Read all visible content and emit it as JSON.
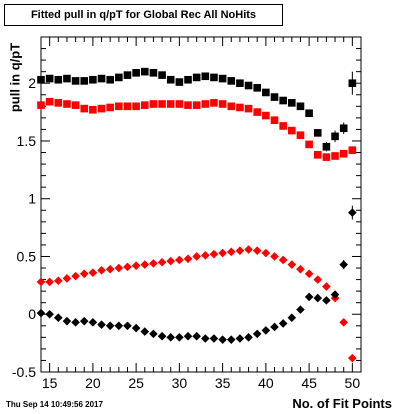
{
  "title": "Fitted pull in q/pT for Global Rec All NoHits",
  "timestamp": "Thu Sep 14 10:49:56 2017",
  "chart_data": {
    "type": "scatter",
    "xlabel": "No. of Fit Points",
    "ylabel": "pull in q/pT",
    "xlim": [
      14,
      51
    ],
    "ylim": [
      -0.5,
      2.4
    ],
    "xticks": [
      15,
      20,
      25,
      30,
      35,
      40,
      45,
      50
    ],
    "yticks": [
      -0.5,
      0,
      0.5,
      1,
      1.5,
      2
    ],
    "grid": false,
    "x": [
      14,
      15,
      16,
      17,
      18,
      19,
      20,
      21,
      22,
      23,
      24,
      25,
      26,
      27,
      28,
      29,
      30,
      31,
      32,
      33,
      34,
      35,
      36,
      37,
      38,
      39,
      40,
      41,
      42,
      43,
      44,
      45,
      46,
      47,
      48,
      49,
      50
    ],
    "series": [
      {
        "marker": "square",
        "color": "#000000",
        "values": [
          2.03,
          2.04,
          2.03,
          2.04,
          2.02,
          2.02,
          2.03,
          2.04,
          2.03,
          2.05,
          2.07,
          2.09,
          2.1,
          2.09,
          2.07,
          2.03,
          2.01,
          2.03,
          2.05,
          2.06,
          2.05,
          2.04,
          2.02,
          2.0,
          1.98,
          1.96,
          1.92,
          1.88,
          1.85,
          1.83,
          1.8,
          1.74,
          1.57,
          1.45,
          1.54,
          1.61,
          2.0
        ],
        "errors": [
          0.02,
          0.02,
          0.02,
          0.02,
          0.02,
          0.02,
          0.02,
          0.02,
          0.02,
          0.02,
          0.02,
          0.02,
          0.02,
          0.02,
          0.02,
          0.02,
          0.02,
          0.02,
          0.02,
          0.02,
          0.02,
          0.02,
          0.02,
          0.02,
          0.02,
          0.02,
          0.02,
          0.02,
          0.02,
          0.02,
          0.02,
          0.03,
          0.03,
          0.04,
          0.05,
          0.05,
          0.1
        ]
      },
      {
        "marker": "square",
        "color": "#ff0000",
        "values": [
          1.81,
          1.84,
          1.83,
          1.82,
          1.81,
          1.78,
          1.77,
          1.78,
          1.79,
          1.8,
          1.8,
          1.8,
          1.81,
          1.82,
          1.82,
          1.82,
          1.82,
          1.81,
          1.81,
          1.82,
          1.83,
          1.82,
          1.8,
          1.79,
          1.78,
          1.75,
          1.72,
          1.68,
          1.63,
          1.59,
          1.55,
          1.47,
          1.38,
          1.36,
          1.37,
          1.39,
          1.42
        ],
        "errors": [
          0.02,
          0.02,
          0.02,
          0.02,
          0.02,
          0.02,
          0.02,
          0.02,
          0.02,
          0.02,
          0.02,
          0.02,
          0.02,
          0.02,
          0.02,
          0.02,
          0.02,
          0.02,
          0.02,
          0.02,
          0.02,
          0.02,
          0.02,
          0.02,
          0.02,
          0.02,
          0.02,
          0.02,
          0.02,
          0.02,
          0.02,
          0.02,
          0.02,
          0.02,
          0.02,
          0.02,
          0.02
        ]
      },
      {
        "marker": "diamond",
        "color": "#ff0000",
        "values": [
          0.28,
          0.28,
          0.29,
          0.31,
          0.33,
          0.35,
          0.36,
          0.38,
          0.39,
          0.4,
          0.41,
          0.42,
          0.43,
          0.44,
          0.45,
          0.46,
          0.47,
          0.48,
          0.5,
          0.51,
          0.52,
          0.53,
          0.54,
          0.55,
          0.56,
          0.55,
          0.53,
          0.5,
          0.47,
          0.43,
          0.39,
          0.35,
          0.3,
          0.24,
          0.14,
          -0.07,
          -0.38
        ],
        "errors": [
          0.01,
          0.01,
          0.01,
          0.01,
          0.01,
          0.01,
          0.01,
          0.01,
          0.01,
          0.01,
          0.01,
          0.01,
          0.01,
          0.01,
          0.01,
          0.01,
          0.01,
          0.01,
          0.01,
          0.01,
          0.01,
          0.01,
          0.01,
          0.01,
          0.01,
          0.01,
          0.01,
          0.01,
          0.01,
          0.01,
          0.01,
          0.01,
          0.01,
          0.01,
          0.01,
          0.02,
          0.03
        ]
      },
      {
        "marker": "diamond",
        "color": "#000000",
        "values": [
          0.01,
          0.0,
          -0.03,
          -0.06,
          -0.07,
          -0.06,
          -0.07,
          -0.09,
          -0.1,
          -0.1,
          -0.1,
          -0.12,
          -0.15,
          -0.17,
          -0.19,
          -0.2,
          -0.2,
          -0.19,
          -0.19,
          -0.21,
          -0.21,
          -0.22,
          -0.22,
          -0.21,
          -0.2,
          -0.17,
          -0.14,
          -0.11,
          -0.08,
          -0.03,
          0.04,
          0.15,
          0.14,
          0.12,
          0.17,
          0.43,
          0.88
        ],
        "errors": [
          0.01,
          0.01,
          0.01,
          0.01,
          0.01,
          0.01,
          0.01,
          0.01,
          0.01,
          0.01,
          0.01,
          0.01,
          0.01,
          0.01,
          0.01,
          0.01,
          0.01,
          0.01,
          0.01,
          0.01,
          0.01,
          0.01,
          0.01,
          0.01,
          0.01,
          0.01,
          0.01,
          0.01,
          0.01,
          0.01,
          0.01,
          0.02,
          0.02,
          0.02,
          0.02,
          0.04,
          0.06
        ]
      }
    ]
  }
}
